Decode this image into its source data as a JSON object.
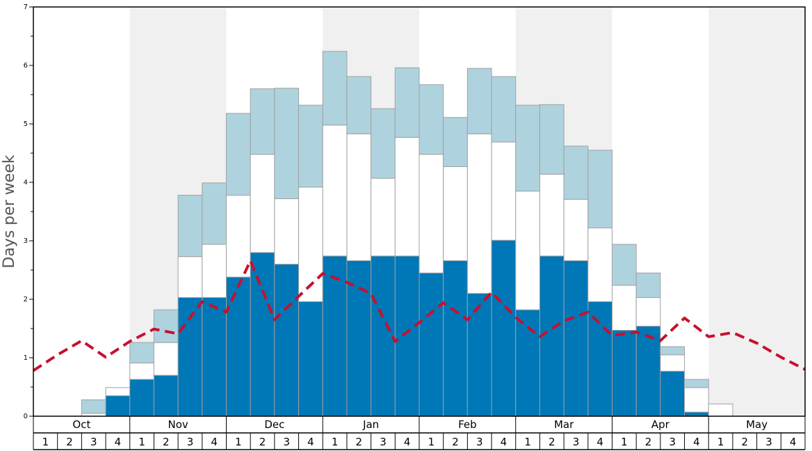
{
  "chart_data": {
    "type": "bar",
    "ylabel": "Days per week",
    "ylim": [
      0,
      7
    ],
    "yticks": [
      0,
      1,
      2,
      3,
      4,
      5,
      6,
      7
    ],
    "months": [
      "Oct",
      "Nov",
      "Dec",
      "Jan",
      "Feb",
      "Mar",
      "Apr",
      "May"
    ],
    "weeks": [
      "1",
      "2",
      "3",
      "4"
    ],
    "shaded_months": [
      "Nov",
      "Jan",
      "Mar",
      "May"
    ],
    "colors": {
      "bottom": "#0077b6",
      "middle": "#ffffff",
      "top": "#aed3df",
      "dashed_line": "#c8102e",
      "band": "#f0f0f0",
      "bar_stroke": "#a0a0a0"
    },
    "stacks": {
      "bottom": [
        0,
        0,
        0,
        0.35,
        0.63,
        0.7,
        2.03,
        2.03,
        2.38,
        2.8,
        2.6,
        1.96,
        2.74,
        2.66,
        2.74,
        2.74,
        2.45,
        2.66,
        2.1,
        3.01,
        1.82,
        2.74,
        2.66,
        1.96,
        1.47,
        1.54,
        0.77,
        0.07,
        0,
        0,
        0,
        0
      ],
      "middle": [
        0,
        0,
        0.05,
        0.14,
        0.28,
        0.56,
        0.7,
        0.91,
        1.4,
        1.68,
        1.12,
        1.96,
        2.24,
        2.17,
        1.33,
        2.03,
        2.03,
        1.61,
        2.73,
        1.68,
        2.03,
        1.4,
        1.05,
        1.26,
        0.77,
        0.49,
        0.28,
        0.42,
        0.21,
        0,
        0,
        0
      ],
      "top": [
        0,
        0,
        0.23,
        0,
        0.35,
        0.56,
        1.05,
        1.05,
        1.4,
        1.12,
        1.89,
        1.4,
        1.26,
        0.98,
        1.19,
        1.19,
        1.19,
        0.84,
        1.12,
        1.12,
        1.47,
        1.19,
        0.91,
        1.33,
        0.7,
        0.42,
        0.14,
        0.14,
        0,
        0,
        0,
        0
      ]
    },
    "dashed_line": [
      0.78,
      1.05,
      1.29,
      1.01,
      1.28,
      1.49,
      1.41,
      1.96,
      1.78,
      2.66,
      1.65,
      2.05,
      2.44,
      2.29,
      2.1,
      1.28,
      1.6,
      1.94,
      1.65,
      2.12,
      1.69,
      1.36,
      1.63,
      1.78,
      1.38,
      1.44,
      1.29,
      1.68,
      1.36,
      1.43,
      1.25,
      1.01,
      0.8
    ]
  }
}
